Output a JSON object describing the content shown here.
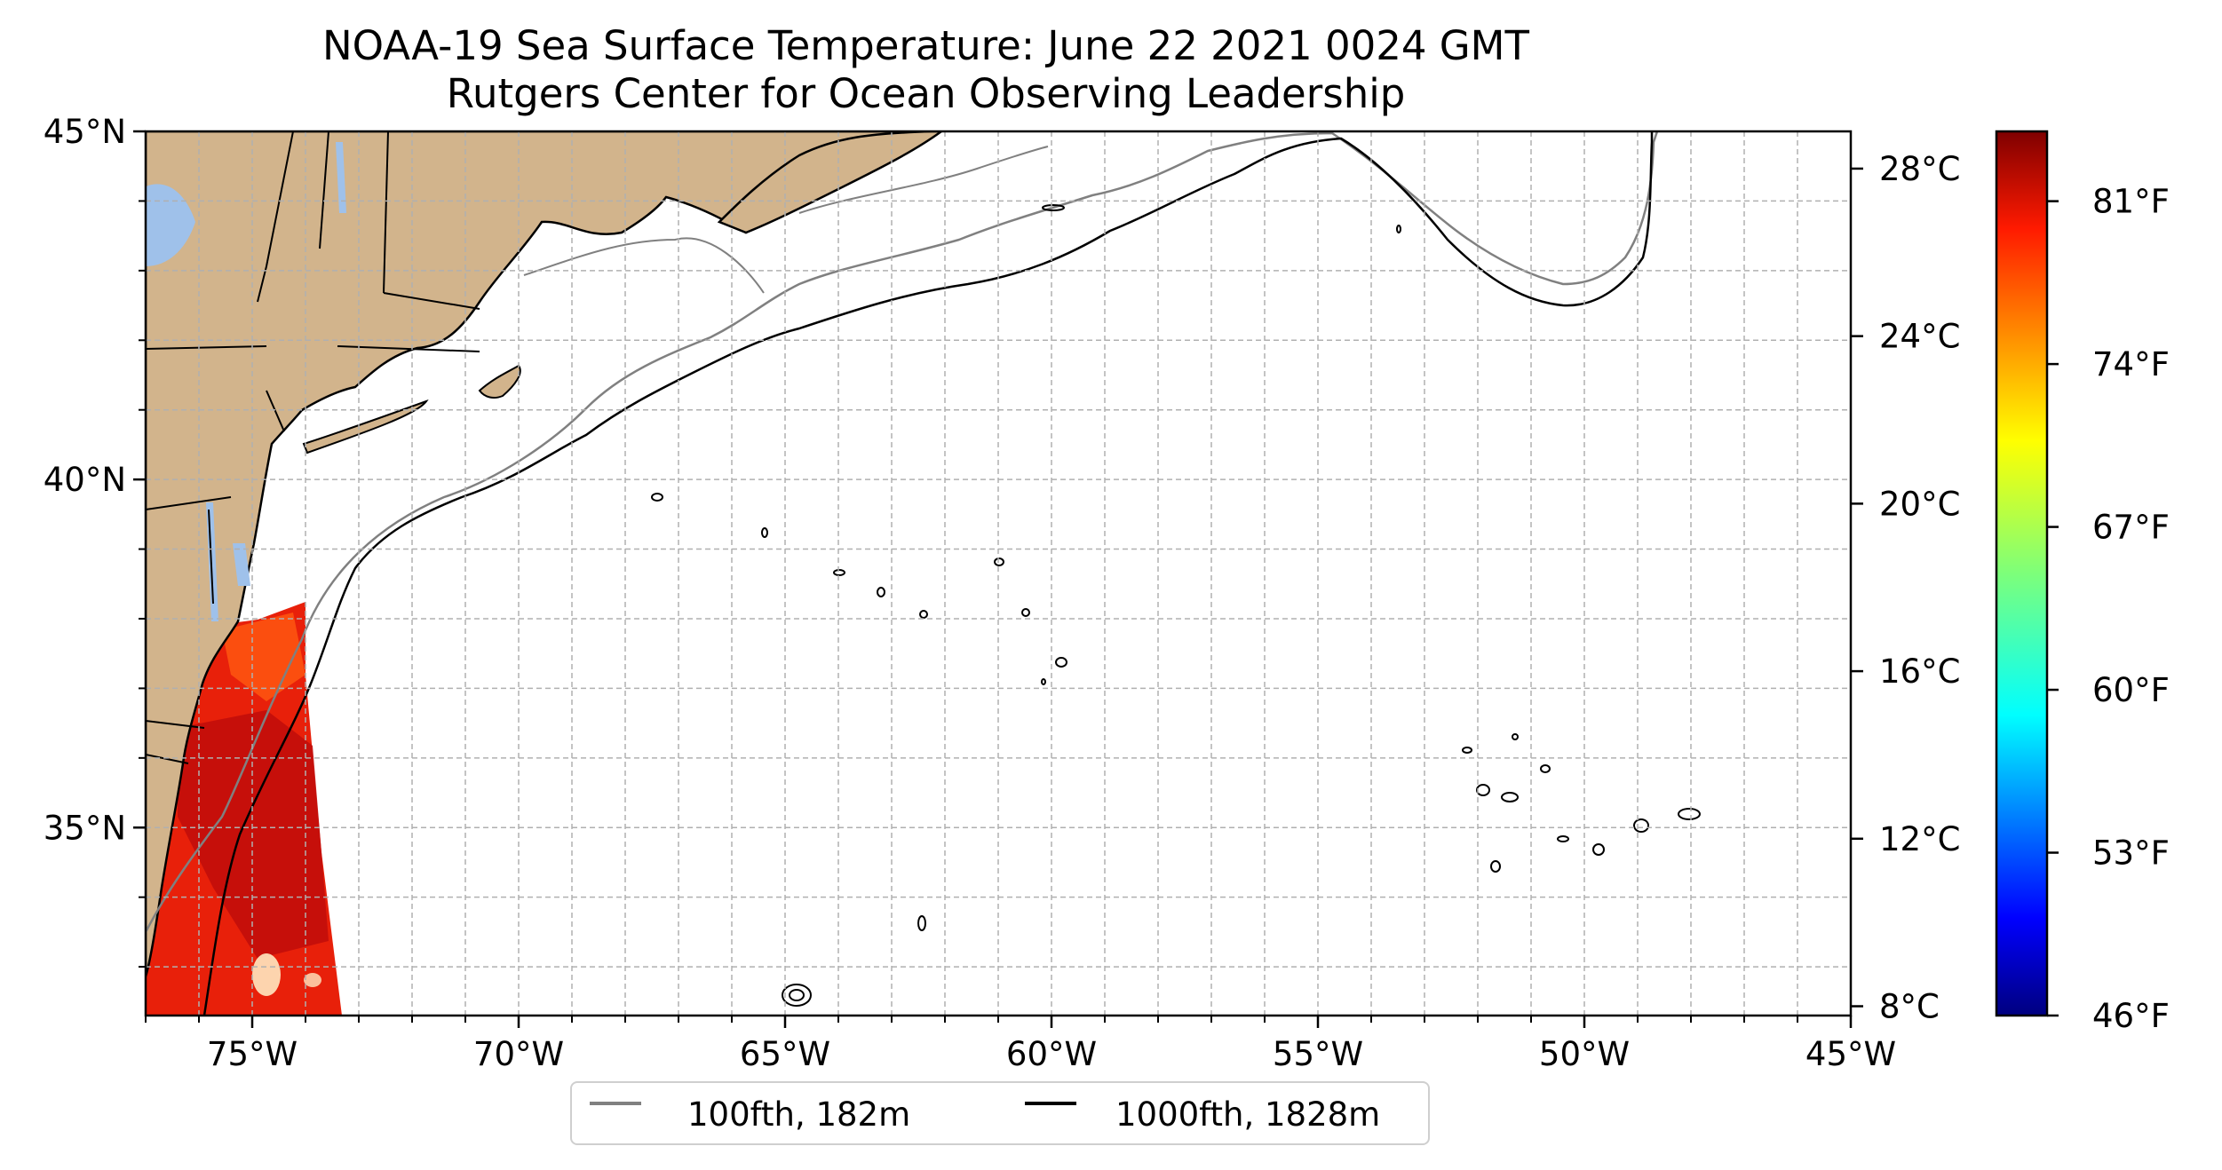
{
  "title": {
    "line1": "NOAA-19 Sea Surface Temperature: June 22 2021 0024 GMT",
    "line2": "Rutgers Center for Ocean Observing Leadership"
  },
  "map": {
    "lon_range": [
      -77,
      -45
    ],
    "lat_range": [
      32.3,
      45
    ],
    "lat_ticks": [
      {
        "value": 45,
        "label": "45°N"
      },
      {
        "value": 40,
        "label": "40°N"
      },
      {
        "value": 35,
        "label": "35°N"
      }
    ],
    "lon_ticks": [
      {
        "value": -75,
        "label": "75°W"
      },
      {
        "value": -70,
        "label": "70°W"
      },
      {
        "value": -65,
        "label": "65°W"
      },
      {
        "value": -60,
        "label": "60°W"
      },
      {
        "value": -55,
        "label": "55°W"
      },
      {
        "value": -50,
        "label": "50°W"
      },
      {
        "value": -45,
        "label": "45°W"
      }
    ],
    "grid": true,
    "land_color": "#d2b48c",
    "water_body_color": "#9fc1ea",
    "isobath_100_color": "#808080",
    "isobath_1000_color": "#000000"
  },
  "colorbar": {
    "celsius_ticks": [
      {
        "value": 8,
        "label": "8°C"
      },
      {
        "value": 12,
        "label": "12°C"
      },
      {
        "value": 16,
        "label": "16°C"
      },
      {
        "value": 20,
        "label": "20°C"
      },
      {
        "value": 24,
        "label": "24°C"
      },
      {
        "value": 28,
        "label": "28°C"
      }
    ],
    "fahrenheit_ticks": [
      {
        "value": 46,
        "label": "46°F"
      },
      {
        "value": 53,
        "label": "53°F"
      },
      {
        "value": 60,
        "label": "60°F"
      },
      {
        "value": 67,
        "label": "67°F"
      },
      {
        "value": 74,
        "label": "74°F"
      },
      {
        "value": 81,
        "label": "81°F"
      }
    ],
    "range_f": [
      46,
      84
    ],
    "colormap": "jet"
  },
  "legend": {
    "items": [
      {
        "label": "100fth, 182m",
        "color": "#808080"
      },
      {
        "label": "1000fth, 1828m",
        "color": "#000000"
      }
    ],
    "placement": "bottom-center"
  }
}
